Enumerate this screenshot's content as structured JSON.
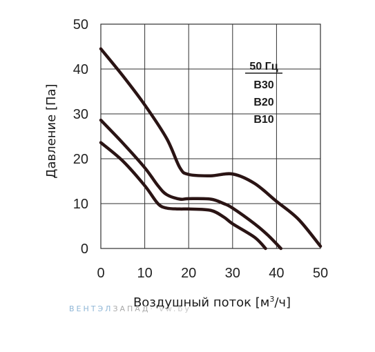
{
  "chart_data": {
    "type": "line",
    "xlabel": "Воздушный поток [м",
    "xlabel_sup": "3",
    "xlabel_end": "/ч]",
    "ylabel": "Давление [Па]",
    "xlim": [
      0,
      50
    ],
    "ylim": [
      0,
      50
    ],
    "x_ticks": [
      "0",
      "10",
      "20",
      "30",
      "40",
      "50"
    ],
    "y_ticks": [
      "0",
      "10",
      "20",
      "30",
      "40",
      "50"
    ],
    "grid": true,
    "legend_title": "50 Гц",
    "legend_position": "top-right",
    "legend_labels": [
      "B30",
      "B20",
      "B10"
    ],
    "series": [
      {
        "name": "B30",
        "x": [
          0,
          5,
          10,
          15,
          18,
          20,
          25,
          30,
          35,
          40,
          45,
          50
        ],
        "y": [
          44.5,
          38.5,
          32,
          24.5,
          18,
          16.5,
          16.2,
          16.6,
          14.5,
          10.5,
          6.5,
          0.5
        ]
      },
      {
        "name": "B20",
        "x": [
          0,
          5,
          10,
          13,
          15,
          18,
          20,
          25,
          28,
          30,
          35,
          38,
          41
        ],
        "y": [
          28.6,
          23.5,
          18,
          14,
          12,
          11,
          11.1,
          11,
          10,
          9,
          5.5,
          3,
          0
        ]
      },
      {
        "name": "B10",
        "x": [
          0,
          5,
          10,
          13,
          15,
          18,
          20,
          25,
          28,
          30,
          35,
          37.5
        ],
        "y": [
          23.6,
          19.5,
          14,
          10,
          9,
          8.8,
          8.8,
          8.5,
          7,
          5.5,
          2.5,
          0
        ]
      }
    ],
    "colors": {
      "line": "#2a1414",
      "grid": "#2f2f2f",
      "text": "#1a1a1a"
    }
  },
  "watermark": {
    "part1": "ВЕНТЭЛ",
    "part2": "ЗАПАД",
    "part3": "· vw.by",
    "color1": "#8fb6d6",
    "color2": "#a9a9a9"
  }
}
